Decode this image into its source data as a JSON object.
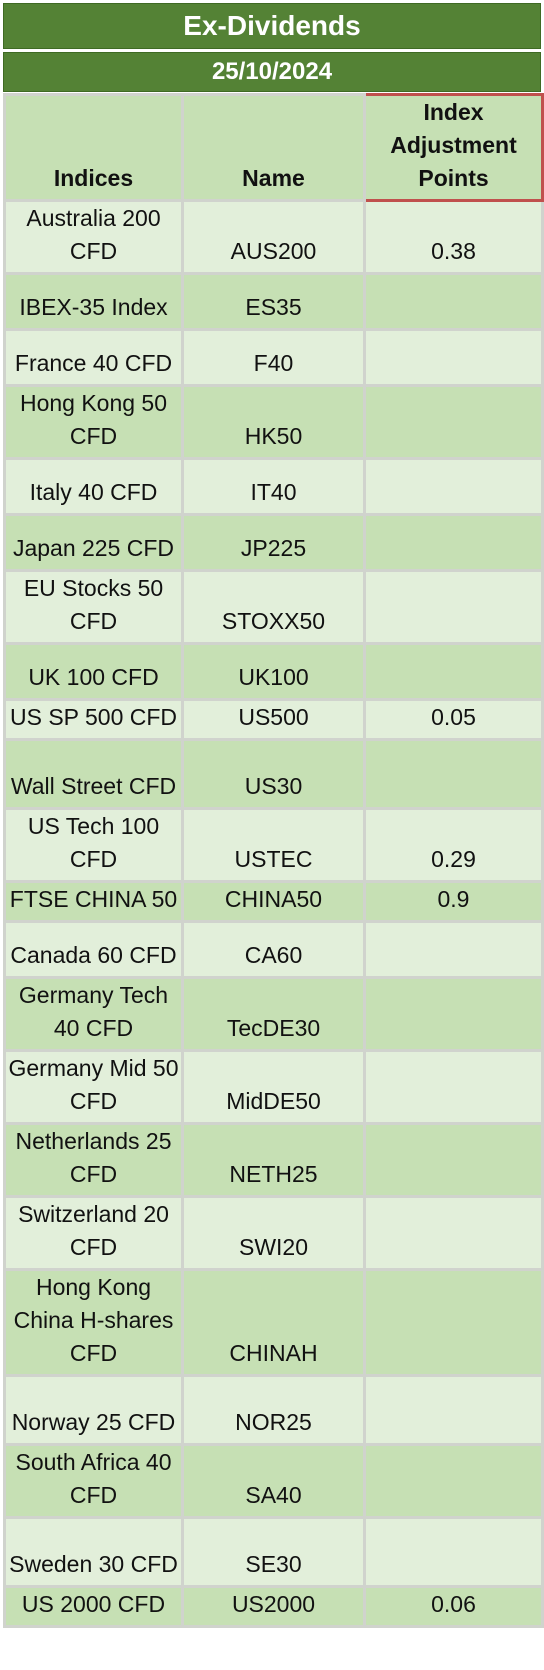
{
  "title": "Ex-Dividends",
  "date": "25/10/2024",
  "columns": [
    "Indices",
    "Name",
    "Index Adjustment Points"
  ],
  "rows": [
    {
      "index": "Australia 200 CFD",
      "name": "AUS200",
      "points": "0.38"
    },
    {
      "index": "IBEX-35 Index",
      "name": "ES35",
      "points": ""
    },
    {
      "index": "France 40 CFD",
      "name": "F40",
      "points": ""
    },
    {
      "index": "Hong Kong 50 CFD",
      "name": "HK50",
      "points": ""
    },
    {
      "index": "Italy 40 CFD",
      "name": "IT40",
      "points": ""
    },
    {
      "index": "Japan 225 CFD",
      "name": "JP225",
      "points": ""
    },
    {
      "index": "EU Stocks 50 CFD",
      "name": "STOXX50",
      "points": ""
    },
    {
      "index": "UK 100 CFD",
      "name": "UK100",
      "points": ""
    },
    {
      "index": "US SP 500 CFD",
      "name": "US500",
      "points": "0.05"
    },
    {
      "index": "Wall Street CFD",
      "name": "US30",
      "points": ""
    },
    {
      "index": "US Tech 100 CFD",
      "name": "USTEC",
      "points": "0.29"
    },
    {
      "index": "FTSE CHINA 50",
      "name": "CHINA50",
      "points": "0.9"
    },
    {
      "index": "Canada 60 CFD",
      "name": "CA60",
      "points": ""
    },
    {
      "index": "Germany Tech 40 CFD",
      "name": "TecDE30",
      "points": ""
    },
    {
      "index": "Germany Mid 50 CFD",
      "name": "MidDE50",
      "points": ""
    },
    {
      "index": "Netherlands 25 CFD",
      "name": "NETH25",
      "points": ""
    },
    {
      "index": "Switzerland 20 CFD",
      "name": "SWI20",
      "points": ""
    },
    {
      "index": "Hong Kong China H-shares CFD",
      "name": "CHINAH",
      "points": ""
    },
    {
      "index": "Norway 25 CFD",
      "name": "NOR25",
      "points": ""
    },
    {
      "index": "South Africa 40 CFD",
      "name": "SA40",
      "points": ""
    },
    {
      "index": "Sweden 30 CFD",
      "name": "SE30",
      "points": ""
    },
    {
      "index": "US 2000 CFD",
      "name": "US2000",
      "points": "0.06"
    }
  ],
  "colors": {
    "title_bg": "#548235",
    "header_bg": "#c6e0b4",
    "row_light": "#e2efda",
    "row_dark": "#c6e0b4",
    "highlight_border": "#c0504d"
  }
}
